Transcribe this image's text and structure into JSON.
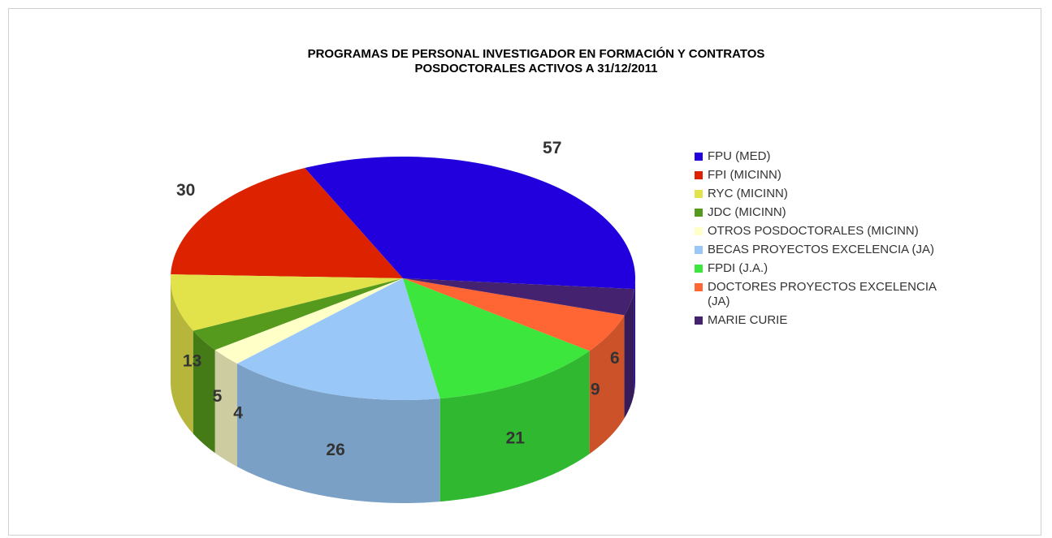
{
  "chart_data": {
    "type": "pie",
    "title": "PROGRAMAS DE PERSONAL INVESTIGADOR EN FORMACIÓN Y CONTRATOS POSDOCTORALES ACTIVOS A 31/12/2011",
    "categories": [
      "FPU (MED)",
      "FPI (MICINN)",
      "RYC (MICINN)",
      "JDC (MICINN)",
      "OTROS POSDOCTORALES (MICINN)",
      "BECAS PROYECTOS EXCELENCIA (JA)",
      "FPDI (J.A.)",
      "DOCTORES PROYECTOS EXCELENCIA (JA)",
      "MARIE CURIE"
    ],
    "values": [
      57,
      30,
      13,
      5,
      4,
      26,
      21,
      9,
      6
    ],
    "colors": [
      "#2200dd",
      "#dd2200",
      "#e2e34a",
      "#559a1d",
      "#ffffc8",
      "#99c8f8",
      "#3ce63c",
      "#ff6633",
      "#442270"
    ],
    "legend": "right"
  }
}
